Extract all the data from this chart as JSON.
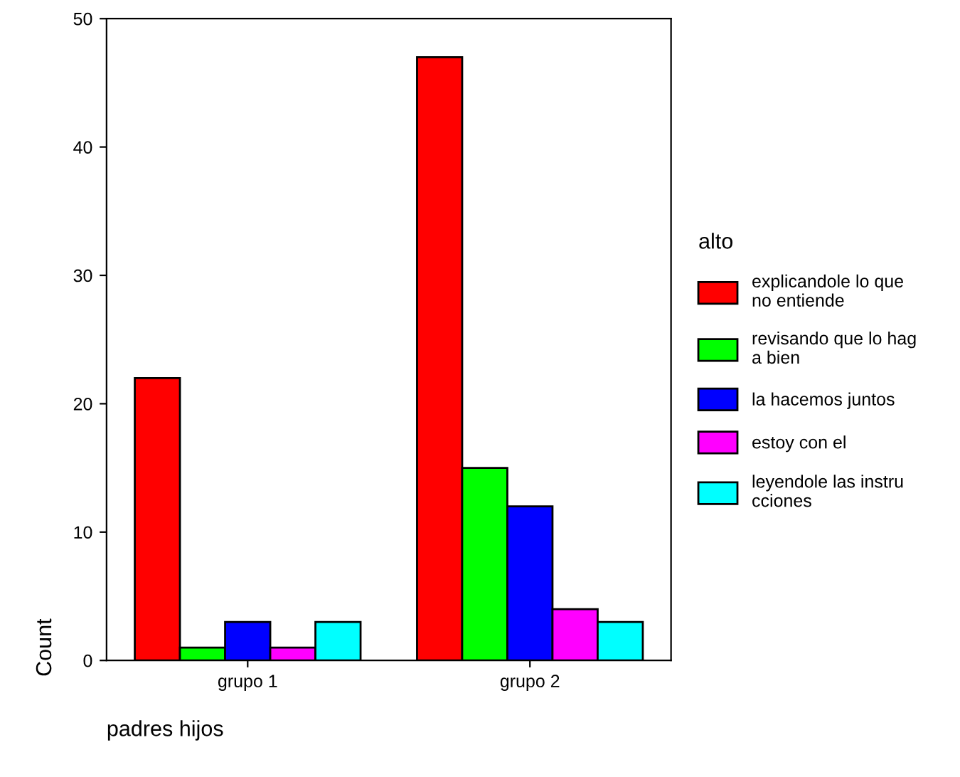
{
  "chart_data": {
    "type": "bar",
    "ylabel": "Count",
    "xlabel": "padres hijos",
    "legend_title": "alto",
    "categories": [
      "grupo 1",
      "grupo 2"
    ],
    "series": [
      {
        "name": "explicandole lo que\nno entiende",
        "color": "#ff0000",
        "values": [
          22,
          47
        ]
      },
      {
        "name": "revisando que lo hag\na bien",
        "color": "#00ff00",
        "values": [
          1,
          15
        ]
      },
      {
        "name": "la hacemos juntos",
        "color": "#0000ff",
        "values": [
          3,
          12
        ]
      },
      {
        "name": "estoy con el",
        "color": "#ff00ff",
        "values": [
          1,
          4
        ]
      },
      {
        "name": "leyendole las instru\ncciones",
        "color": "#00ffff",
        "values": [
          3,
          3
        ]
      }
    ],
    "ylim": [
      0,
      50
    ],
    "yticks": [
      0,
      10,
      20,
      30,
      40,
      50
    ],
    "grid": false,
    "legend": "right"
  }
}
